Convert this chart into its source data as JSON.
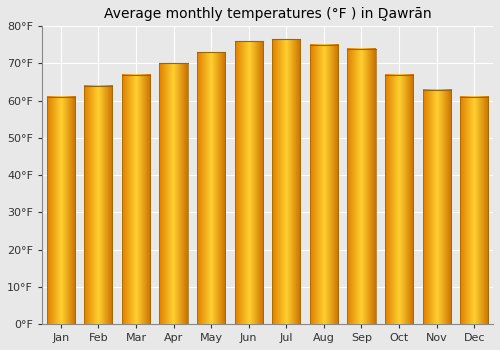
{
  "title": "Average monthly temperatures (°F ) in Ḑ̣awrān",
  "months": [
    "Jan",
    "Feb",
    "Mar",
    "Apr",
    "May",
    "Jun",
    "Jul",
    "Aug",
    "Sep",
    "Oct",
    "Nov",
    "Dec"
  ],
  "values": [
    61,
    64,
    67,
    70,
    73,
    76,
    76.5,
    75,
    74,
    67,
    63,
    61
  ],
  "ylim": [
    0,
    80
  ],
  "yticks": [
    0,
    10,
    20,
    30,
    40,
    50,
    60,
    70,
    80
  ],
  "ytick_labels": [
    "0°F",
    "10°F",
    "20°F",
    "30°F",
    "40°F",
    "50°F",
    "60°F",
    "70°F",
    "80°F"
  ],
  "bar_color_bright": "#FFD700",
  "bar_color_mid": "#FFA500",
  "bar_color_dark": "#E08000",
  "background_color": "#e8e8e8",
  "grid_color": "#ffffff",
  "title_fontsize": 10,
  "tick_fontsize": 8,
  "bar_width": 0.75
}
